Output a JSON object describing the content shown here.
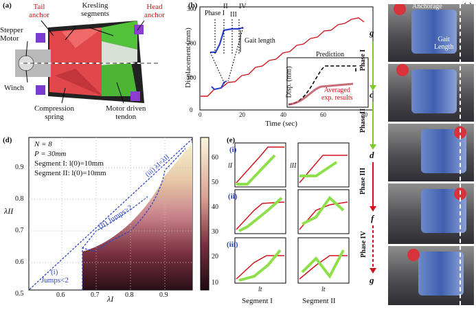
{
  "panel_labels": {
    "a": "(a)",
    "b": "(b)",
    "c": "(c)",
    "d": "(d)",
    "e": "(e)"
  },
  "panel_a": {
    "tail_anchor": "Tail\nanchor",
    "kresling": "Kresling\nsegments",
    "head_anchor": "Head\nanchor",
    "stepper": "Stepper\nMotor",
    "winch": "Winch",
    "compression": "Compression\nspring",
    "tendon": "Motor driven\ntendon"
  },
  "panel_b": {
    "ylabel": "Displacement (mm)",
    "xlabel": "Time (sec)",
    "phases": [
      "Phase I",
      "II",
      "III",
      "IV"
    ],
    "gait": "Gait length",
    "inset_ylabel": "Disp. (mm)",
    "prediction": "Prediction",
    "averaged": "Averaged\nexp. results",
    "yticks": [
      "0",
      "100",
      "200",
      "300"
    ],
    "xticks": [
      "0",
      "20",
      "40",
      "60",
      "80"
    ]
  },
  "panel_c": {
    "anchorage": "Anchorage",
    "gait_length": "Gait\nLength",
    "states": [
      "g",
      "c",
      "d",
      "f",
      "g"
    ],
    "phases": [
      "Phase I",
      "Phase II",
      "Phase III",
      "Phase IV"
    ]
  },
  "panel_d": {
    "params": [
      "N = 8",
      "P = 30mm",
      "Segment I: l(0)=10mm",
      "Segment II: l(0)=10mm"
    ],
    "region_i": "(i)",
    "jumps_lt2": "Jumps<2",
    "region_ii": "(ii) Jumps>2",
    "region_iii": "(iii) λI=λII",
    "xlabel": "λI",
    "ylabel": "λII",
    "xticks": [
      "0.6",
      "0.7",
      "0.8",
      "0.9"
    ],
    "yticks": [
      "0.5",
      "0.6",
      "0.7",
      "0.8",
      "0.9"
    ],
    "cbar": [
      "10",
      "20",
      "30",
      "40",
      "50",
      "60"
    ]
  },
  "panel_e": {
    "rows": [
      "(i)",
      "(ii)",
      "(iii)"
    ],
    "seg1": "Segment I",
    "seg2": "Segment II",
    "x": "lt",
    "y1": "lI",
    "y2": "lII"
  },
  "colors": {
    "red": "#d1141b",
    "blue": "#2b3fd0",
    "green": "#8ee04a",
    "dashblue": "#2a44c8"
  }
}
